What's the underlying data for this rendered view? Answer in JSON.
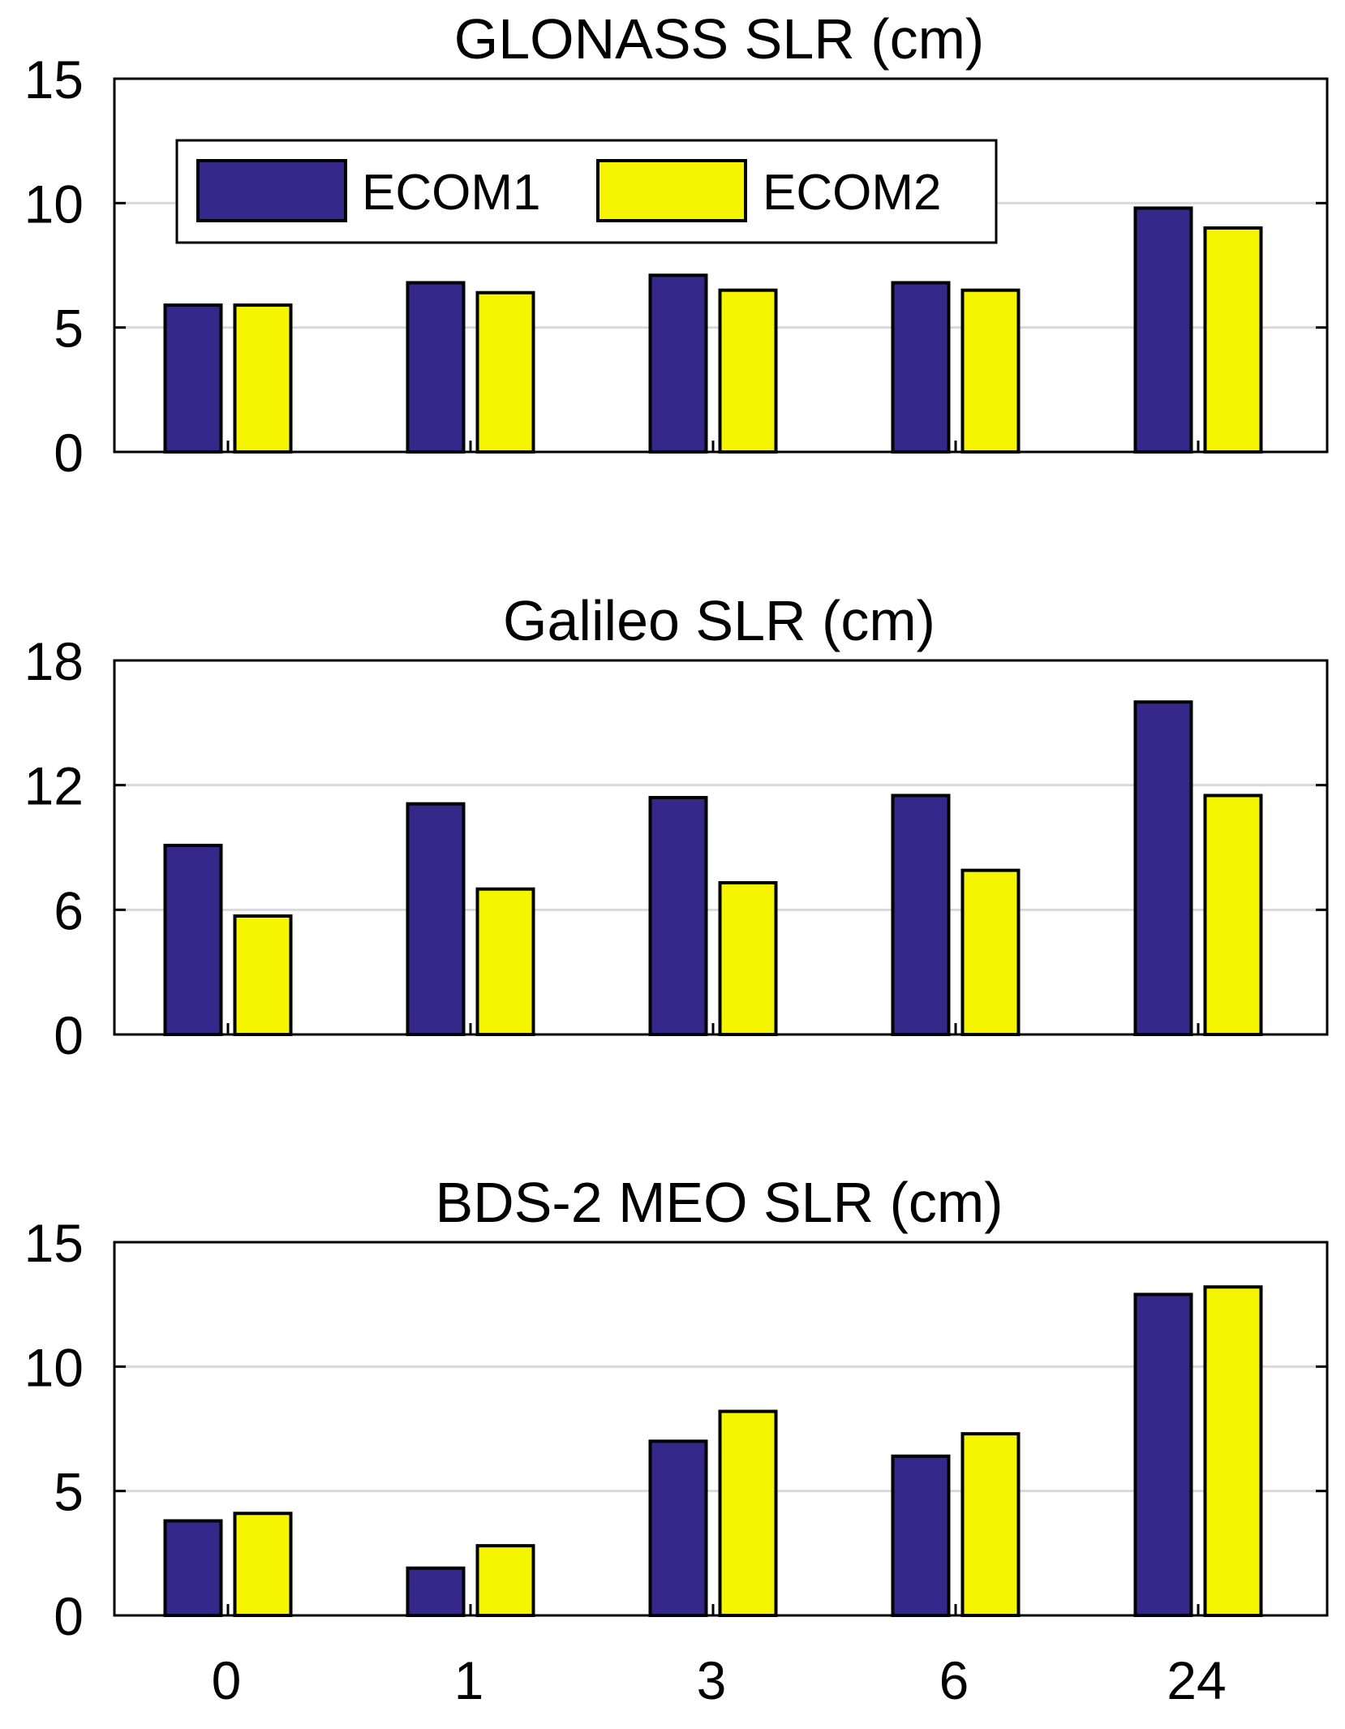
{
  "chart_data": [
    {
      "type": "bar",
      "title": "GLONASS SLR (cm)",
      "categories": [
        "0",
        "1",
        "3",
        "6",
        "24"
      ],
      "series": [
        {
          "name": "ECOM1",
          "color": "#35288a",
          "values": [
            5.9,
            6.8,
            7.1,
            6.8,
            9.8
          ]
        },
        {
          "name": "ECOM2",
          "color": "#f5f500",
          "values": [
            5.9,
            6.4,
            6.5,
            6.5,
            9.0
          ]
        }
      ],
      "ylim": [
        0,
        15
      ],
      "yticks": [
        0,
        5,
        10,
        15
      ],
      "grid": true,
      "legend": {
        "position": "top-left",
        "entries": [
          "ECOM1",
          "ECOM2"
        ]
      },
      "xlabel": "",
      "ylabel": ""
    },
    {
      "type": "bar",
      "title": "Galileo SLR (cm)",
      "categories": [
        "0",
        "1",
        "3",
        "6",
        "24"
      ],
      "series": [
        {
          "name": "ECOM1",
          "color": "#35288a",
          "values": [
            9.1,
            11.1,
            11.4,
            11.5,
            16.0
          ]
        },
        {
          "name": "ECOM2",
          "color": "#f5f500",
          "values": [
            5.7,
            7.0,
            7.3,
            7.9,
            11.5
          ]
        }
      ],
      "ylim": [
        0,
        18
      ],
      "yticks": [
        0,
        6,
        12,
        18
      ],
      "grid": true,
      "xlabel": "",
      "ylabel": ""
    },
    {
      "type": "bar",
      "title": "BDS-2 MEO SLR (cm)",
      "categories": [
        "0",
        "1",
        "3",
        "6",
        "24"
      ],
      "series": [
        {
          "name": "ECOM1",
          "color": "#35288a",
          "values": [
            3.8,
            1.9,
            7.0,
            6.4,
            12.9
          ]
        },
        {
          "name": "ECOM2",
          "color": "#f5f500",
          "values": [
            4.1,
            2.8,
            8.2,
            7.3,
            13.2
          ]
        }
      ],
      "ylim": [
        0,
        15
      ],
      "yticks": [
        0,
        5,
        10,
        15
      ],
      "grid": true,
      "xlabel": "",
      "ylabel": ""
    }
  ]
}
